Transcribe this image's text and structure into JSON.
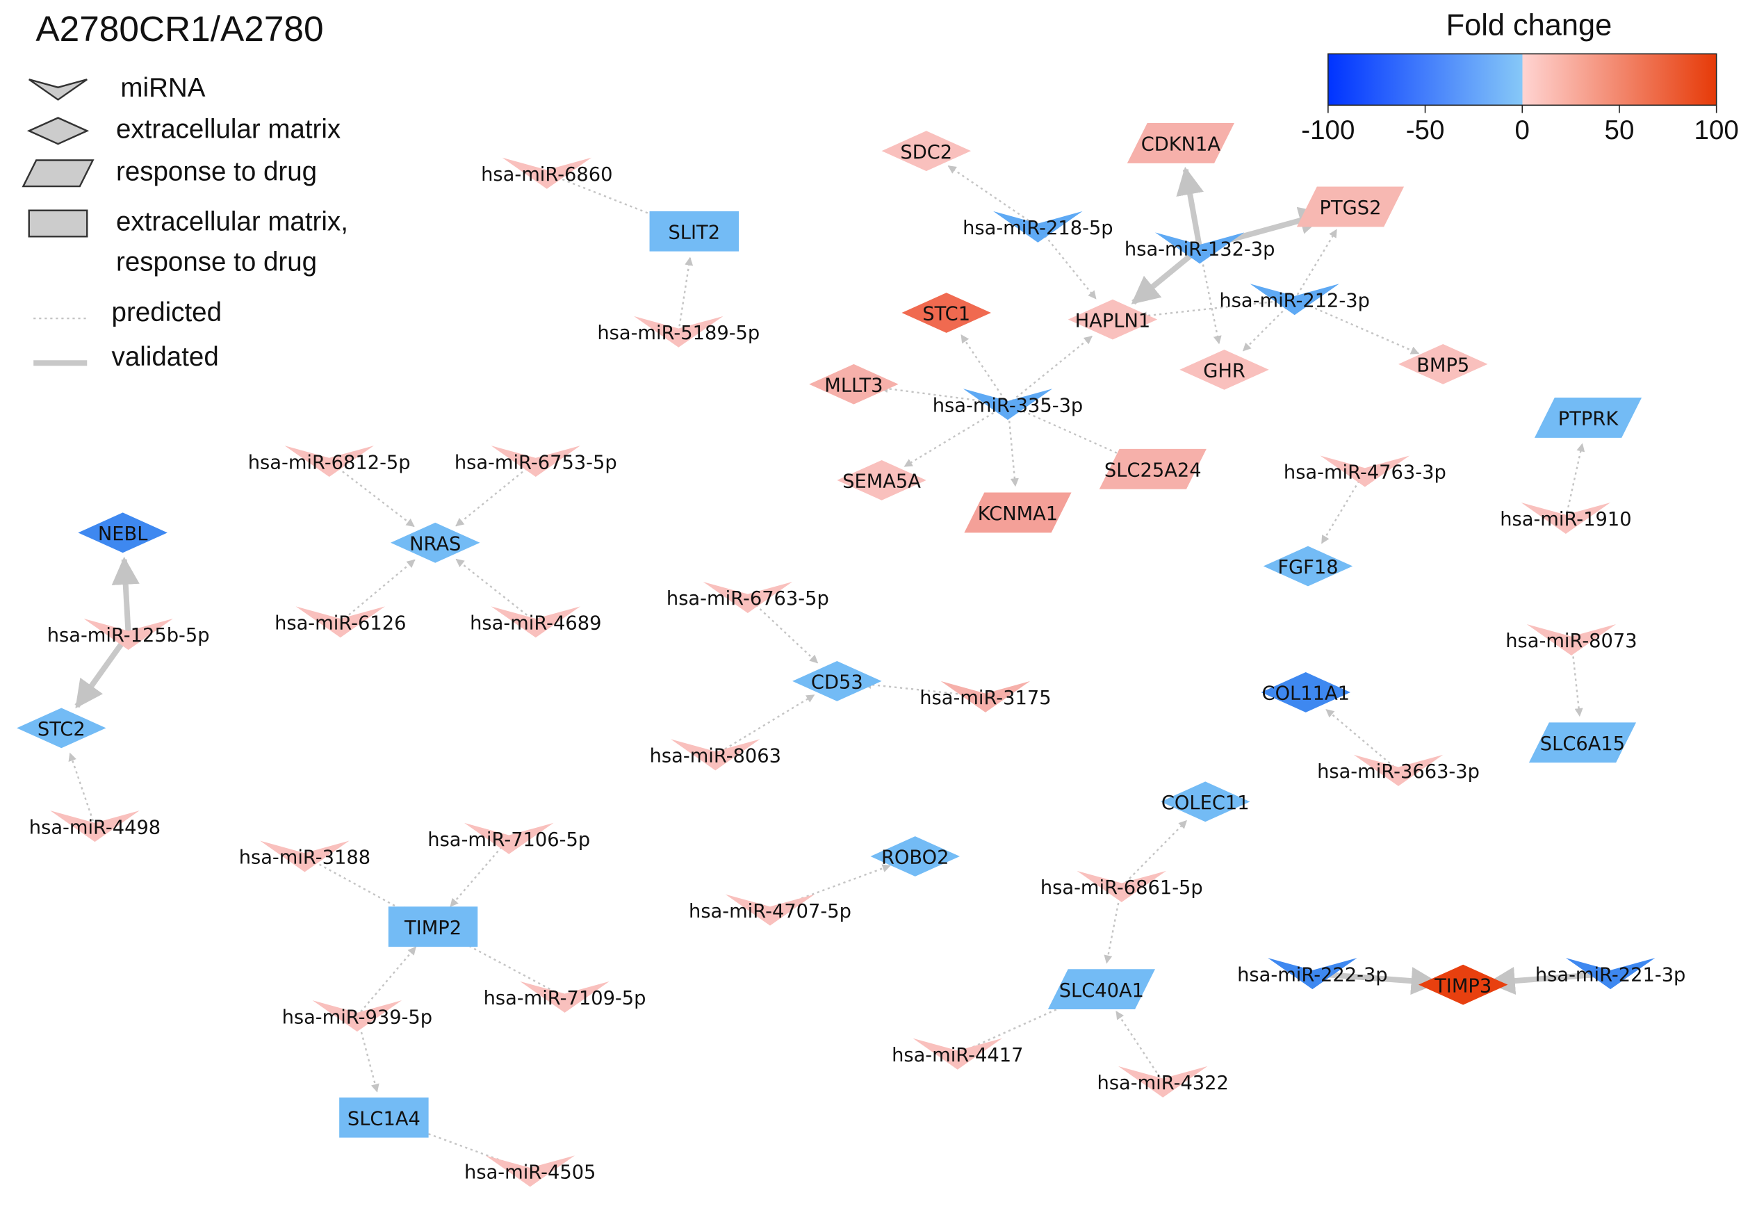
{
  "title": "A2780CR1/A2780",
  "legend": {
    "shapes": [
      {
        "shape": "mirna",
        "label": [
          "miRNA"
        ]
      },
      {
        "shape": "diamond",
        "label": [
          "extracellular matrix"
        ]
      },
      {
        "shape": "para",
        "label": [
          "response to drug"
        ]
      },
      {
        "shape": "rect",
        "label": [
          "extracellular matrix,",
          "response to drug"
        ]
      }
    ],
    "edges": [
      {
        "kind": "predicted",
        "label": "predicted"
      },
      {
        "kind": "validated",
        "label": "validated"
      }
    ]
  },
  "colorbar": {
    "title": "Fold change",
    "lim": [
      -100,
      100
    ],
    "ticks": [
      -100,
      -50,
      0,
      50,
      100
    ],
    "colors": [
      "#0033ff",
      "#86c8f8",
      "#ffd4d2",
      "#e63a08"
    ]
  },
  "nodes": [
    {
      "label": "hsa-miR-6860",
      "shape": "mirna",
      "color": "#f9c0bd"
    },
    {
      "label": "SLIT2",
      "shape": "rect",
      "color": "#73bbf5"
    },
    {
      "label": "hsa-miR-5189-5p",
      "shape": "mirna",
      "color": "#f9c0bd"
    },
    {
      "label": "SDC2",
      "shape": "diamond",
      "color": "#f9c0bd"
    },
    {
      "label": "CDKN1A",
      "shape": "para",
      "color": "#f6b0aa"
    },
    {
      "label": "PTGS2",
      "shape": "para",
      "color": "#f7b8b2"
    },
    {
      "label": "hsa-miR-218-5p",
      "shape": "mirna",
      "color": "#5ea9f4"
    },
    {
      "label": "hsa-miR-132-3p",
      "shape": "mirna",
      "color": "#5ea9f4"
    },
    {
      "label": "hsa-miR-212-3p",
      "shape": "mirna",
      "color": "#5ea9f4"
    },
    {
      "label": "STC1",
      "shape": "diamond",
      "color": "#f06a50"
    },
    {
      "label": "HAPLN1",
      "shape": "diamond",
      "color": "#f9c0bd"
    },
    {
      "label": "GHR",
      "shape": "diamond",
      "color": "#f9c0bd"
    },
    {
      "label": "BMP5",
      "shape": "diamond",
      "color": "#f9c0bd"
    },
    {
      "label": "MLLT3",
      "shape": "diamond",
      "color": "#f6b0aa"
    },
    {
      "label": "hsa-miR-335-3p",
      "shape": "mirna",
      "color": "#5ea9f4"
    },
    {
      "label": "SEMA5A",
      "shape": "diamond",
      "color": "#f9c0bd"
    },
    {
      "label": "KCNMA1",
      "shape": "para",
      "color": "#f4a098"
    },
    {
      "label": "SLC25A24",
      "shape": "para",
      "color": "#f6b0aa"
    },
    {
      "label": "hsa-miR-4763-3p",
      "shape": "mirna",
      "color": "#f9c0bd"
    },
    {
      "label": "FGF18",
      "shape": "diamond",
      "color": "#73bbf5"
    },
    {
      "label": "PTPRK",
      "shape": "para",
      "color": "#73bbf5"
    },
    {
      "label": "hsa-miR-1910",
      "shape": "mirna",
      "color": "#f9c0bd"
    },
    {
      "label": "hsa-miR-8073",
      "shape": "mirna",
      "color": "#f9c0bd"
    },
    {
      "label": "SLC6A15",
      "shape": "para",
      "color": "#73bbf5"
    },
    {
      "label": "COL11A1",
      "shape": "diamond",
      "color": "#3e88f0"
    },
    {
      "label": "hsa-miR-3663-3p",
      "shape": "mirna",
      "color": "#f9c0bd"
    },
    {
      "label": "hsa-miR-6812-5p",
      "shape": "mirna",
      "color": "#f9c0bd"
    },
    {
      "label": "hsa-miR-6753-5p",
      "shape": "mirna",
      "color": "#f9c0bd"
    },
    {
      "label": "NRAS",
      "shape": "diamond",
      "color": "#73bbf5"
    },
    {
      "label": "hsa-miR-6126",
      "shape": "mirna",
      "color": "#f9c0bd"
    },
    {
      "label": "hsa-miR-4689",
      "shape": "mirna",
      "color": "#f9c0bd"
    },
    {
      "label": "NEBL",
      "shape": "diamond",
      "color": "#3e88f0"
    },
    {
      "label": "hsa-miR-125b-5p",
      "shape": "mirna",
      "color": "#f9c0bd"
    },
    {
      "label": "STC2",
      "shape": "diamond",
      "color": "#73bbf5"
    },
    {
      "label": "hsa-miR-4498",
      "shape": "mirna",
      "color": "#f9c0bd"
    },
    {
      "label": "hsa-miR-6763-5p",
      "shape": "mirna",
      "color": "#f9c0bd"
    },
    {
      "label": "CD53",
      "shape": "diamond",
      "color": "#73bbf5"
    },
    {
      "label": "hsa-miR-3175",
      "shape": "mirna",
      "color": "#f6b0aa"
    },
    {
      "label": "hsa-miR-8063",
      "shape": "mirna",
      "color": "#f9c0bd"
    },
    {
      "label": "COLEC11",
      "shape": "diamond",
      "color": "#73bbf5"
    },
    {
      "label": "hsa-miR-6861-5p",
      "shape": "mirna",
      "color": "#f9c0bd"
    },
    {
      "label": "ROBO2",
      "shape": "diamond",
      "color": "#73bbf5"
    },
    {
      "label": "hsa-miR-4707-5p",
      "shape": "mirna",
      "color": "#f9c0bd"
    },
    {
      "label": "SLC40A1",
      "shape": "para",
      "color": "#73bbf5"
    },
    {
      "label": "hsa-miR-4417",
      "shape": "mirna",
      "color": "#f9c0bd"
    },
    {
      "label": "hsa-miR-4322",
      "shape": "mirna",
      "color": "#f9c0bd"
    },
    {
      "label": "hsa-miR-3188",
      "shape": "mirna",
      "color": "#f9c0bd"
    },
    {
      "label": "hsa-miR-7106-5p",
      "shape": "mirna",
      "color": "#f9c0bd"
    },
    {
      "label": "TIMP2",
      "shape": "rect",
      "color": "#73bbf5"
    },
    {
      "label": "hsa-miR-7109-5p",
      "shape": "mirna",
      "color": "#f9c0bd"
    },
    {
      "label": "hsa-miR-939-5p",
      "shape": "mirna",
      "color": "#f9c0bd"
    },
    {
      "label": "SLC1A4",
      "shape": "rect",
      "color": "#73bbf5"
    },
    {
      "label": "hsa-miR-4505",
      "shape": "mirna",
      "color": "#f9c0bd"
    },
    {
      "label": "hsa-miR-222-3p",
      "shape": "mirna",
      "color": "#3e88f0"
    },
    {
      "label": "TIMP3",
      "shape": "diamond",
      "color": "#e8400f"
    },
    {
      "label": "hsa-miR-221-3p",
      "shape": "mirna",
      "color": "#3e88f0"
    }
  ],
  "edges": [
    {
      "source": "hsa-miR-6860",
      "target": "SLIT2",
      "kind": "predicted"
    },
    {
      "source": "hsa-miR-5189-5p",
      "target": "SLIT2",
      "kind": "predicted"
    },
    {
      "source": "hsa-miR-218-5p",
      "target": "SDC2",
      "kind": "predicted"
    },
    {
      "source": "hsa-miR-218-5p",
      "target": "HAPLN1",
      "kind": "predicted"
    },
    {
      "source": "hsa-miR-132-3p",
      "target": "CDKN1A",
      "kind": "validated"
    },
    {
      "source": "hsa-miR-132-3p",
      "target": "PTGS2",
      "kind": "validated"
    },
    {
      "source": "hsa-miR-132-3p",
      "target": "HAPLN1",
      "kind": "validated"
    },
    {
      "source": "hsa-miR-132-3p",
      "target": "GHR",
      "kind": "predicted"
    },
    {
      "source": "hsa-miR-212-3p",
      "target": "PTGS2",
      "kind": "predicted"
    },
    {
      "source": "hsa-miR-212-3p",
      "target": "HAPLN1",
      "kind": "predicted"
    },
    {
      "source": "hsa-miR-212-3p",
      "target": "GHR",
      "kind": "predicted"
    },
    {
      "source": "hsa-miR-212-3p",
      "target": "BMP5",
      "kind": "predicted"
    },
    {
      "source": "hsa-miR-335-3p",
      "target": "STC1",
      "kind": "predicted"
    },
    {
      "source": "hsa-miR-335-3p",
      "target": "HAPLN1",
      "kind": "predicted"
    },
    {
      "source": "hsa-miR-335-3p",
      "target": "MLLT3",
      "kind": "predicted"
    },
    {
      "source": "hsa-miR-335-3p",
      "target": "SEMA5A",
      "kind": "predicted"
    },
    {
      "source": "hsa-miR-335-3p",
      "target": "KCNMA1",
      "kind": "predicted"
    },
    {
      "source": "hsa-miR-335-3p",
      "target": "SLC25A24",
      "kind": "predicted"
    },
    {
      "source": "hsa-miR-4763-3p",
      "target": "FGF18",
      "kind": "predicted"
    },
    {
      "source": "hsa-miR-1910",
      "target": "PTPRK",
      "kind": "predicted"
    },
    {
      "source": "hsa-miR-8073",
      "target": "SLC6A15",
      "kind": "predicted"
    },
    {
      "source": "hsa-miR-3663-3p",
      "target": "COL11A1",
      "kind": "predicted"
    },
    {
      "source": "hsa-miR-6812-5p",
      "target": "NRAS",
      "kind": "predicted"
    },
    {
      "source": "hsa-miR-6753-5p",
      "target": "NRAS",
      "kind": "predicted"
    },
    {
      "source": "hsa-miR-6126",
      "target": "NRAS",
      "kind": "predicted"
    },
    {
      "source": "hsa-miR-4689",
      "target": "NRAS",
      "kind": "predicted"
    },
    {
      "source": "hsa-miR-125b-5p",
      "target": "NEBL",
      "kind": "validated"
    },
    {
      "source": "hsa-miR-125b-5p",
      "target": "STC2",
      "kind": "validated"
    },
    {
      "source": "hsa-miR-4498",
      "target": "STC2",
      "kind": "predicted"
    },
    {
      "source": "hsa-miR-6763-5p",
      "target": "CD53",
      "kind": "predicted"
    },
    {
      "source": "hsa-miR-3175",
      "target": "CD53",
      "kind": "predicted"
    },
    {
      "source": "hsa-miR-8063",
      "target": "CD53",
      "kind": "predicted"
    },
    {
      "source": "hsa-miR-6861-5p",
      "target": "COLEC11",
      "kind": "predicted"
    },
    {
      "source": "hsa-miR-6861-5p",
      "target": "SLC40A1",
      "kind": "predicted"
    },
    {
      "source": "hsa-miR-4707-5p",
      "target": "ROBO2",
      "kind": "predicted"
    },
    {
      "source": "hsa-miR-4417",
      "target": "SLC40A1",
      "kind": "predicted"
    },
    {
      "source": "hsa-miR-4322",
      "target": "SLC40A1",
      "kind": "predicted"
    },
    {
      "source": "hsa-miR-3188",
      "target": "TIMP2",
      "kind": "predicted"
    },
    {
      "source": "hsa-miR-7106-5p",
      "target": "TIMP2",
      "kind": "predicted"
    },
    {
      "source": "hsa-miR-7109-5p",
      "target": "TIMP2",
      "kind": "predicted"
    },
    {
      "source": "hsa-miR-939-5p",
      "target": "TIMP2",
      "kind": "predicted"
    },
    {
      "source": "hsa-miR-939-5p",
      "target": "SLC1A4",
      "kind": "predicted"
    },
    {
      "source": "hsa-miR-4505",
      "target": "SLC1A4",
      "kind": "predicted"
    },
    {
      "source": "hsa-miR-222-3p",
      "target": "TIMP3",
      "kind": "validated"
    },
    {
      "source": "hsa-miR-221-3p",
      "target": "TIMP3",
      "kind": "validated"
    }
  ]
}
